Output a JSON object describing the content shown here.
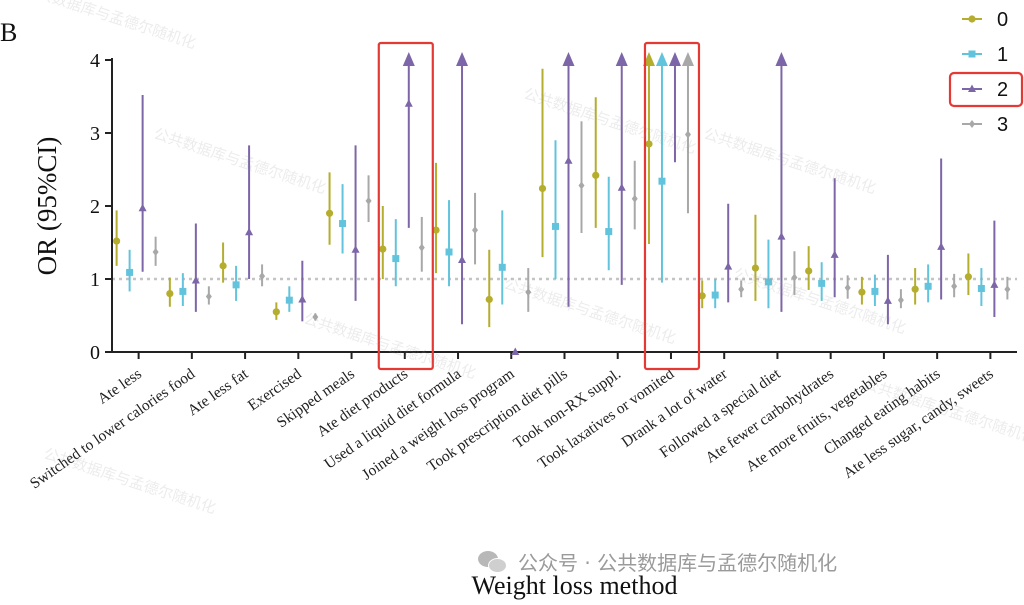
{
  "panel_letter": "B",
  "watermark_text": "公共数据库与孟德尔随机化",
  "wechat_text": "公众号 · 公共数据库与孟德尔随机化",
  "chart_data": {
    "type": "scatter",
    "subtype": "odds-ratio-forest-by-category",
    "xlabel": "Weight loss method",
    "ylabel": "OR (95%CI)",
    "ylim": [
      0,
      4
    ],
    "yticks": [
      0,
      1,
      2,
      3,
      4
    ],
    "reference_line": 1,
    "legend_position": "top-right",
    "categories": [
      "Ate less",
      "Switched to lower calories food",
      "Ate less fat",
      "Exercised",
      "Skipped meals",
      "Ate diet products",
      "Used a liquid diet formula",
      "Joined a weight loss program",
      "Took prescription diet pills",
      "Took non-RX suppl.",
      "Took laxatives or vomited",
      "Drank a lot of water",
      "Followed a special diet",
      "Ate fewer carbohydrates",
      "Ate more fruits, vegetables",
      "Changed eating habits",
      "Ate less sugar, candy, sweets"
    ],
    "highlighted_categories": [
      "Ate diet products",
      "Took laxatives or vomited"
    ],
    "highlighted_series": "2",
    "series": [
      {
        "name": "0",
        "color": "#b5ad2e",
        "marker": "circle",
        "or": [
          1.52,
          0.8,
          1.18,
          0.55,
          1.9,
          1.41,
          1.67,
          0.72,
          2.24,
          2.42,
          2.85,
          0.77,
          1.15,
          1.11,
          0.82,
          0.86,
          1.03
        ],
        "lower": [
          1.18,
          0.62,
          0.95,
          0.44,
          1.47,
          1.0,
          1.08,
          0.34,
          1.3,
          1.7,
          1.48,
          0.6,
          0.7,
          0.85,
          0.65,
          0.65,
          0.78
        ],
        "upper": [
          1.94,
          1.02,
          1.5,
          0.68,
          2.46,
          2.0,
          2.59,
          1.4,
          3.88,
          3.49,
          4.0,
          0.98,
          1.88,
          1.45,
          1.03,
          1.15,
          1.35
        ]
      },
      {
        "name": "1",
        "color": "#62c4dc",
        "marker": "square",
        "or": [
          1.09,
          0.83,
          0.92,
          0.71,
          1.76,
          1.28,
          1.37,
          1.16,
          1.72,
          1.65,
          2.34,
          0.78,
          0.96,
          0.94,
          0.83,
          0.9,
          0.87
        ],
        "lower": [
          0.83,
          0.63,
          0.7,
          0.55,
          1.35,
          0.9,
          0.9,
          0.65,
          1.0,
          1.12,
          0.95,
          0.6,
          0.6,
          0.7,
          0.63,
          0.68,
          0.63
        ],
        "upper": [
          1.4,
          1.08,
          1.18,
          0.9,
          2.3,
          1.82,
          2.08,
          1.94,
          2.9,
          2.4,
          4.0,
          1.0,
          1.54,
          1.23,
          1.06,
          1.2,
          1.15
        ]
      },
      {
        "name": "2",
        "color": "#7d66a8",
        "marker": "triangle",
        "or": [
          1.97,
          0.98,
          1.64,
          0.72,
          1.4,
          3.4,
          1.26,
          0.0,
          2.62,
          2.25,
          4.0,
          1.17,
          1.58,
          1.33,
          0.7,
          1.44,
          0.92
        ],
        "lower": [
          1.1,
          0.55,
          1.0,
          0.42,
          0.7,
          1.7,
          0.38,
          0.0,
          0.62,
          0.92,
          2.6,
          0.68,
          0.55,
          0.75,
          0.38,
          0.72,
          0.48
        ],
        "upper": [
          3.52,
          1.76,
          2.83,
          1.25,
          2.83,
          4.0,
          4.0,
          0.0,
          4.0,
          4.0,
          4.0,
          2.03,
          4.0,
          2.38,
          1.33,
          2.65,
          1.8
        ]
      },
      {
        "name": "3",
        "color": "#a8a8a8",
        "marker": "diamond",
        "or": [
          1.37,
          0.76,
          1.04,
          0.48,
          2.07,
          1.43,
          1.67,
          0.82,
          2.28,
          2.1,
          2.98,
          0.86,
          1.02,
          0.88,
          0.71,
          0.9,
          0.86
        ],
        "lower": [
          1.18,
          0.65,
          0.9,
          0.43,
          1.78,
          1.1,
          1.2,
          0.55,
          1.63,
          1.68,
          1.9,
          0.75,
          0.78,
          0.73,
          0.6,
          0.75,
          0.72
        ],
        "upper": [
          1.58,
          0.9,
          1.2,
          0.53,
          2.42,
          1.85,
          2.18,
          1.15,
          3.16,
          2.62,
          4.0,
          0.98,
          1.38,
          1.05,
          0.86,
          1.07,
          1.03
        ]
      }
    ]
  }
}
